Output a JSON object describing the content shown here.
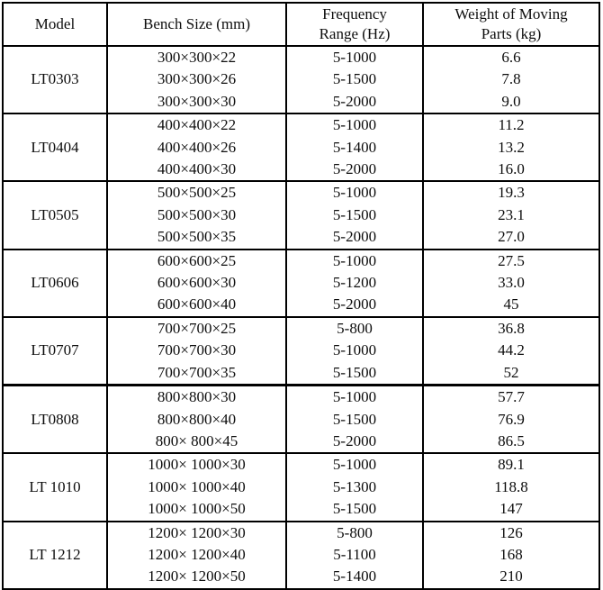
{
  "page": {
    "background": "#ffffff",
    "border_color": "#000000",
    "text_color": "#0d0d0d"
  },
  "table": {
    "columns": [
      {
        "label": "Model",
        "lines": [
          "Model"
        ]
      },
      {
        "label": "Bench Size (mm)",
        "lines": [
          "Bench Size (mm)"
        ]
      },
      {
        "label": "Frequency Range (Hz)",
        "lines": [
          "Frequency",
          "Range (Hz)"
        ]
      },
      {
        "label": "Weight of Moving Parts (kg)",
        "lines": [
          "Weight of Moving",
          "Parts (kg)"
        ]
      }
    ],
    "groups": [
      {
        "model": "LT0303",
        "rows": [
          {
            "size": "300×300×22",
            "freq": "5-1000",
            "weight": "6.6"
          },
          {
            "size": "300×300×26",
            "freq": "5-1500",
            "weight": "7.8"
          },
          {
            "size": "300×300×30",
            "freq": "5-2000",
            "weight": "9.0"
          }
        ]
      },
      {
        "model": "LT0404",
        "rows": [
          {
            "size": "400×400×22",
            "freq": "5-1000",
            "weight": "11.2"
          },
          {
            "size": "400×400×26",
            "freq": "5-1400",
            "weight": "13.2"
          },
          {
            "size": "400×400×30",
            "freq": "5-2000",
            "weight": "16.0"
          }
        ]
      },
      {
        "model": "LT0505",
        "rows": [
          {
            "size": "500×500×25",
            "freq": "5-1000",
            "weight": "19.3"
          },
          {
            "size": "500×500×30",
            "freq": "5-1500",
            "weight": "23.1"
          },
          {
            "size": "500×500×35",
            "freq": "5-2000",
            "weight": "27.0"
          }
        ]
      },
      {
        "model": "LT0606",
        "rows": [
          {
            "size": "600×600×25",
            "freq": "5-1000",
            "weight": "27.5"
          },
          {
            "size": "600×600×30",
            "freq": "5-1200",
            "weight": "33.0"
          },
          {
            "size": "600×600×40",
            "freq": "5-2000",
            "weight": "45"
          }
        ]
      },
      {
        "model": "LT0707",
        "rows": [
          {
            "size": "700×700×25",
            "freq": "5-800",
            "weight": "36.8"
          },
          {
            "size": "700×700×30",
            "freq": "5-1000",
            "weight": "44.2"
          },
          {
            "size": "700×700×35",
            "freq": "5-1500",
            "weight": "52"
          }
        ]
      },
      {
        "model": "LT0808",
        "divider_heavy_above": true,
        "rows": [
          {
            "size": "800×800×30",
            "freq": "5-1000",
            "weight": "57.7"
          },
          {
            "size": "800×800×40",
            "freq": "5-1500",
            "weight": "76.9"
          },
          {
            "size": "800× 800×45",
            "freq": "5-2000",
            "weight": "86.5"
          }
        ]
      },
      {
        "model": "LT 1010",
        "rows": [
          {
            "size": "1000× 1000×30",
            "freq": "5-1000",
            "weight": "89.1"
          },
          {
            "size": "1000× 1000×40",
            "freq": "5-1300",
            "weight": "118.8"
          },
          {
            "size": "1000× 1000×50",
            "freq": "5-1500",
            "weight": "147"
          }
        ]
      },
      {
        "model": "LT 1212",
        "rows": [
          {
            "size": "1200× 1200×30",
            "freq": "5-800",
            "weight": "126"
          },
          {
            "size": "1200× 1200×40",
            "freq": "5-1100",
            "weight": "168"
          },
          {
            "size": "1200× 1200×50",
            "freq": "5-1400",
            "weight": "210"
          }
        ]
      }
    ]
  }
}
